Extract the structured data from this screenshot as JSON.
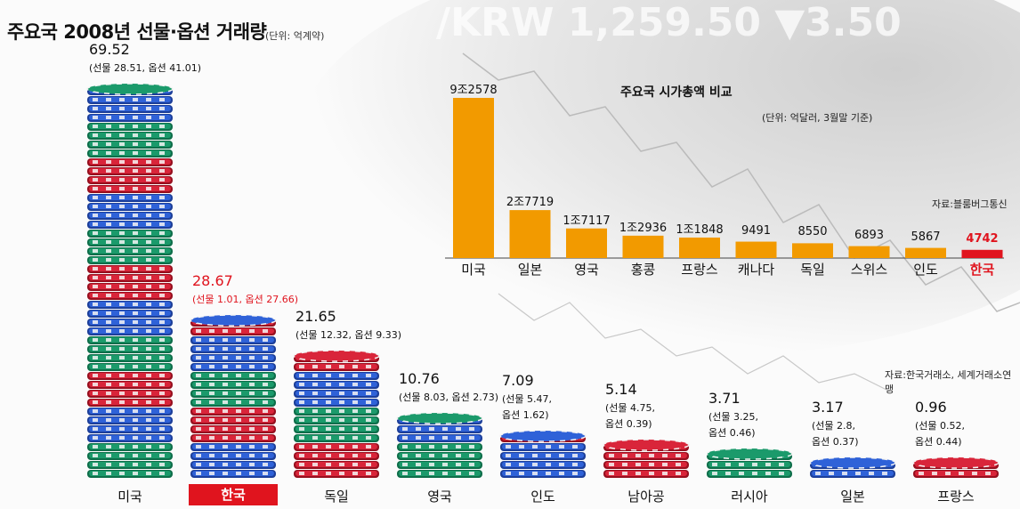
{
  "title": "주요국 2008년 선물·옵션 거래량",
  "unit": "(단위: 억계약)",
  "source": "자료:한국거래소, 세계거래소연맹",
  "background_text": "/KRW   1,259.50   ▼3.50",
  "colors": {
    "highlight": "#e0141e",
    "bar": "#f29a00",
    "bar_highlight": "#e0141e"
  },
  "chart_data": [
    {
      "type": "bar",
      "title": "주요국 2008년 선물·옵션 거래량",
      "unit": "(단위: 억계약)",
      "categories": [
        "미국",
        "한국",
        "독일",
        "영국",
        "인도",
        "남아공",
        "러시아",
        "일본",
        "프랑스"
      ],
      "values": [
        69.52,
        28.67,
        21.65,
        10.76,
        7.09,
        5.14,
        3.71,
        3.17,
        0.96
      ],
      "value_labels": [
        "69.52",
        "28.67",
        "21.65",
        "10.76",
        "7.09",
        "5.14",
        "3.71",
        "3.17",
        "0.96"
      ],
      "breakdown_labels": [
        [
          "(선물 28.51, 옵션 41.01)"
        ],
        [
          "(선물 1.01, 옵션 27.66)"
        ],
        [
          "(선물 12.32, 옵션 9.33)"
        ],
        [
          "(선물 8.03, 옵션 2.73)"
        ],
        [
          "(선물 5.47,",
          "옵션 1.62)"
        ],
        [
          "(선물 4.75,",
          "옵션 0.39)"
        ],
        [
          "(선물 3.25,",
          "옵션 0.46)"
        ],
        [
          "(선물 2.8,",
          "옵션 0.37)"
        ],
        [
          "(선물 0.52,",
          "옵션 0.44)"
        ]
      ],
      "futures": [
        28.51,
        1.01,
        12.32,
        8.03,
        5.47,
        4.75,
        3.25,
        2.8,
        0.52
      ],
      "options": [
        41.01,
        27.66,
        9.33,
        2.73,
        1.62,
        0.39,
        0.46,
        0.37,
        0.44
      ],
      "highlight": "한국",
      "source": "자료:한국거래소, 세계거래소연맹"
    },
    {
      "type": "bar",
      "title": "주요국 시가총액 비교",
      "unit": "(단위: 억달러, 3월말 기준)",
      "categories": [
        "미국",
        "일본",
        "영국",
        "홍콩",
        "프랑스",
        "캐나다",
        "독일",
        "스위스",
        "인도",
        "한국"
      ],
      "values": [
        92578,
        27719,
        17117,
        12936,
        11848,
        9491,
        8550,
        6893,
        5867,
        4742
      ],
      "value_labels": [
        "9조2578",
        "2조7719",
        "1조7117",
        "1조2936",
        "1조1848",
        "9491",
        "8550",
        "6893",
        "5867",
        "4742"
      ],
      "highlight": "한국",
      "source": "자료:블룸버그통신"
    }
  ]
}
